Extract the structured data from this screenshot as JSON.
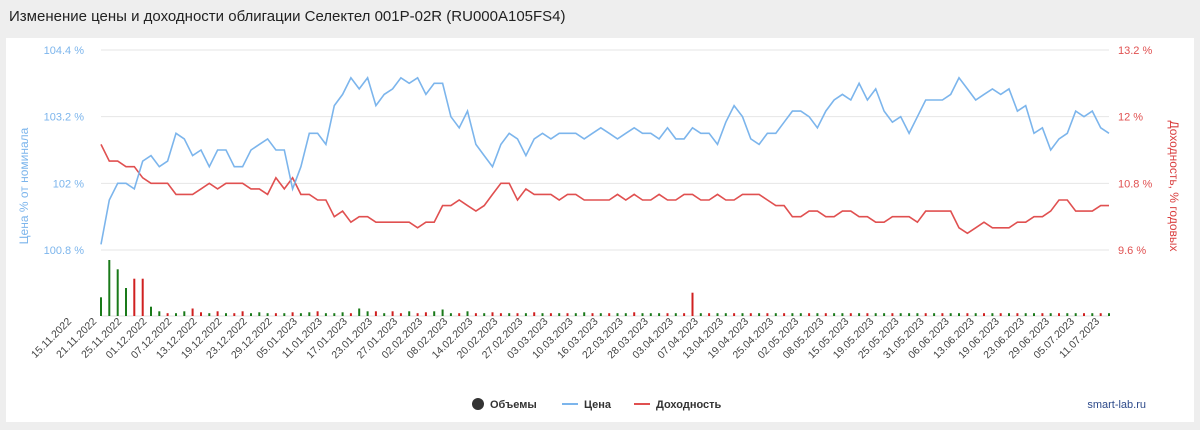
{
  "header": {
    "title": "Изменение цены и доходности облигации Селектел 001P-02R (RU000A105FS4)"
  },
  "watermark": "smart-lab.ru",
  "colors": {
    "price": "#7cb5ec",
    "yield": "#e05050",
    "volume_up": "#1a7a1a",
    "volume_down": "#d02020",
    "legend_volume": "#333333"
  },
  "chart_data": {
    "type": "line",
    "left_axis": {
      "title": "Цена % от номинала",
      "ticks": [
        104.4,
        103.2,
        102,
        100.8
      ],
      "tick_labels": [
        "104.4 %",
        "103.2 %",
        "102 %",
        "100.8 %"
      ],
      "range": [
        100.8,
        104.4
      ]
    },
    "right_axis": {
      "title": "Доходность, % годовых",
      "ticks": [
        13.2,
        12,
        10.8,
        9.6
      ],
      "tick_labels": [
        "13.2 %",
        "12 %",
        "10.8 %",
        "9.6 %"
      ],
      "range": [
        9.6,
        13.2
      ]
    },
    "x_tick_labels": [
      "15.11.2022",
      "21.11.2022",
      "25.11.2022",
      "01.12.2022",
      "07.12.2022",
      "13.12.2022",
      "19.12.2022",
      "23.12.2022",
      "29.12.2022",
      "05.01.2023",
      "11.01.2023",
      "17.01.2023",
      "23.01.2023",
      "27.01.2023",
      "02.02.2023",
      "08.02.2023",
      "14.02.2023",
      "20.02.2023",
      "27.02.2023",
      "03.03.2023",
      "10.03.2023",
      "16.03.2023",
      "22.03.2023",
      "28.03.2023",
      "03.04.2023",
      "07.04.2023",
      "13.04.2023",
      "19.04.2023",
      "25.04.2023",
      "02.05.2023",
      "08.05.2023",
      "15.05.2023",
      "19.05.2023",
      "25.05.2023",
      "31.05.2023",
      "06.06.2023",
      "13.06.2023",
      "19.06.2023",
      "23.06.2023",
      "29.06.2023",
      "05.07.2023",
      "11.07.2023"
    ],
    "legend": [
      {
        "name": "Объемы",
        "type": "dot"
      },
      {
        "name": "Цена",
        "type": "line"
      },
      {
        "name": "Доходность",
        "type": "line"
      }
    ],
    "series": [
      {
        "name": "Цена",
        "axis": "left",
        "values": [
          100.9,
          101.7,
          102.0,
          102.0,
          101.9,
          102.4,
          102.5,
          102.3,
          102.4,
          102.9,
          102.8,
          102.5,
          102.6,
          102.3,
          102.6,
          102.6,
          102.3,
          102.3,
          102.6,
          102.7,
          102.8,
          102.6,
          102.6,
          101.9,
          102.3,
          102.9,
          102.9,
          102.7,
          103.4,
          103.6,
          103.9,
          103.7,
          103.9,
          103.4,
          103.6,
          103.7,
          103.9,
          103.8,
          103.9,
          103.6,
          103.8,
          103.8,
          103.2,
          103.0,
          103.3,
          102.7,
          102.5,
          102.3,
          102.7,
          102.9,
          102.8,
          102.5,
          102.8,
          102.9,
          102.8,
          102.9,
          102.9,
          102.9,
          102.8,
          102.9,
          103.0,
          102.9,
          102.8,
          102.9,
          103.0,
          102.9,
          102.9,
          102.8,
          103.0,
          102.8,
          102.8,
          103.0,
          102.9,
          102.9,
          102.7,
          103.1,
          103.4,
          103.2,
          102.8,
          102.7,
          102.9,
          102.9,
          103.1,
          103.3,
          103.3,
          103.2,
          103.0,
          103.3,
          103.5,
          103.6,
          103.5,
          103.8,
          103.5,
          103.7,
          103.3,
          103.1,
          103.2,
          102.9,
          103.2,
          103.5,
          103.5,
          103.5,
          103.6,
          103.9,
          103.7,
          103.5,
          103.6,
          103.7,
          103.6,
          103.7,
          103.3,
          103.4,
          102.9,
          103.0,
          102.6,
          102.8,
          102.9,
          103.3,
          103.2,
          103.3,
          103.0,
          102.9
        ],
        "color": "#7cb5ec"
      },
      {
        "name": "Доходность",
        "axis": "right",
        "values": [
          11.5,
          11.2,
          11.2,
          11.1,
          11.1,
          10.9,
          10.8,
          10.8,
          10.8,
          10.6,
          10.6,
          10.6,
          10.7,
          10.8,
          10.7,
          10.8,
          10.8,
          10.8,
          10.7,
          10.7,
          10.6,
          10.9,
          10.7,
          10.9,
          10.6,
          10.6,
          10.5,
          10.5,
          10.2,
          10.3,
          10.1,
          10.2,
          10.2,
          10.1,
          10.1,
          10.1,
          10.1,
          10.1,
          10.0,
          10.1,
          10.1,
          10.4,
          10.4,
          10.5,
          10.4,
          10.3,
          10.4,
          10.6,
          10.8,
          10.8,
          10.5,
          10.7,
          10.6,
          10.6,
          10.6,
          10.5,
          10.6,
          10.6,
          10.5,
          10.5,
          10.5,
          10.5,
          10.6,
          10.5,
          10.6,
          10.5,
          10.5,
          10.6,
          10.5,
          10.5,
          10.6,
          10.6,
          10.5,
          10.5,
          10.6,
          10.5,
          10.5,
          10.6,
          10.6,
          10.6,
          10.5,
          10.4,
          10.4,
          10.2,
          10.2,
          10.3,
          10.3,
          10.2,
          10.2,
          10.3,
          10.3,
          10.2,
          10.2,
          10.1,
          10.1,
          10.2,
          10.2,
          10.2,
          10.1,
          10.3,
          10.3,
          10.3,
          10.3,
          10.0,
          9.9,
          10.0,
          10.1,
          10.0,
          10.0,
          10.0,
          10.1,
          10.1,
          10.2,
          10.2,
          10.3,
          10.5,
          10.5,
          10.3,
          10.3,
          10.3,
          10.4,
          10.4
        ],
        "color": "#e05050"
      },
      {
        "name": "Объемы",
        "type": "bar",
        "values": [
          2,
          6,
          5,
          3,
          4,
          4,
          1,
          0.5,
          0.3,
          0.3,
          0.5,
          0.8,
          0.4,
          0.3,
          0.5,
          0.3,
          0.3,
          0.5,
          0.3,
          0.4,
          0.3,
          0.3,
          0.3,
          0.4,
          0.3,
          0.4,
          0.5,
          0.3,
          0.3,
          0.4,
          0.3,
          0.8,
          0.5,
          0.5,
          0.3,
          0.5,
          0.3,
          0.5,
          0.3,
          0.4,
          0.5,
          0.7,
          0.3,
          0.3,
          0.5,
          0.3,
          0.3,
          0.4,
          0.3,
          0.3,
          0.3,
          0.3,
          0.4,
          0.3,
          0.3,
          0.3,
          0.3,
          0.3,
          0.4,
          0.3,
          0.3,
          0.3,
          0.3,
          0.3,
          0.4,
          0.3,
          0.3,
          0.3,
          0.3,
          0.3,
          0.3,
          2.5,
          0.3,
          0.3,
          0.3,
          0.3,
          0.3,
          0.3,
          0.3,
          0.3,
          0.3,
          0.3,
          0.3,
          0.3,
          0.3,
          0.3,
          0.3,
          0.3,
          0.3,
          0.3,
          0.3,
          0.3,
          0.3,
          0.3,
          0.3,
          0.3,
          0.3,
          0.3,
          0.3,
          0.3,
          0.3,
          0.3,
          0.3,
          0.3,
          0.3,
          0.3,
          0.3,
          0.3,
          0.3,
          0.3,
          0.3,
          0.3,
          0.3,
          0.3,
          0.3,
          0.3,
          0.3,
          0.3,
          0.3,
          0.3,
          0.3,
          0.3
        ],
        "down_mask": [
          0,
          0,
          0,
          0,
          1,
          1,
          0,
          0,
          1,
          0,
          0,
          1,
          1,
          0,
          1,
          0,
          1,
          1,
          0,
          0,
          0,
          1,
          0,
          1,
          0,
          0,
          1,
          0,
          0,
          0,
          1,
          0,
          0,
          1,
          0,
          1,
          1,
          0,
          1,
          1,
          0,
          0,
          0,
          1,
          0,
          1,
          0,
          1,
          1,
          0,
          1,
          0,
          1,
          0,
          1,
          0,
          1,
          0,
          0,
          1,
          0,
          1,
          0,
          0,
          1,
          0,
          0,
          0,
          1,
          0,
          1,
          1,
          0,
          1,
          0,
          0,
          1,
          0,
          1,
          0,
          1,
          0,
          1,
          0,
          0,
          1,
          0,
          1,
          0,
          0,
          1,
          0,
          1,
          0,
          0,
          1,
          0,
          0,
          0,
          1,
          0,
          1,
          0,
          0,
          1,
          0,
          1,
          0,
          1,
          0,
          1,
          0,
          0,
          1,
          0,
          1,
          0,
          0,
          1,
          0,
          1,
          0
        ]
      }
    ]
  }
}
